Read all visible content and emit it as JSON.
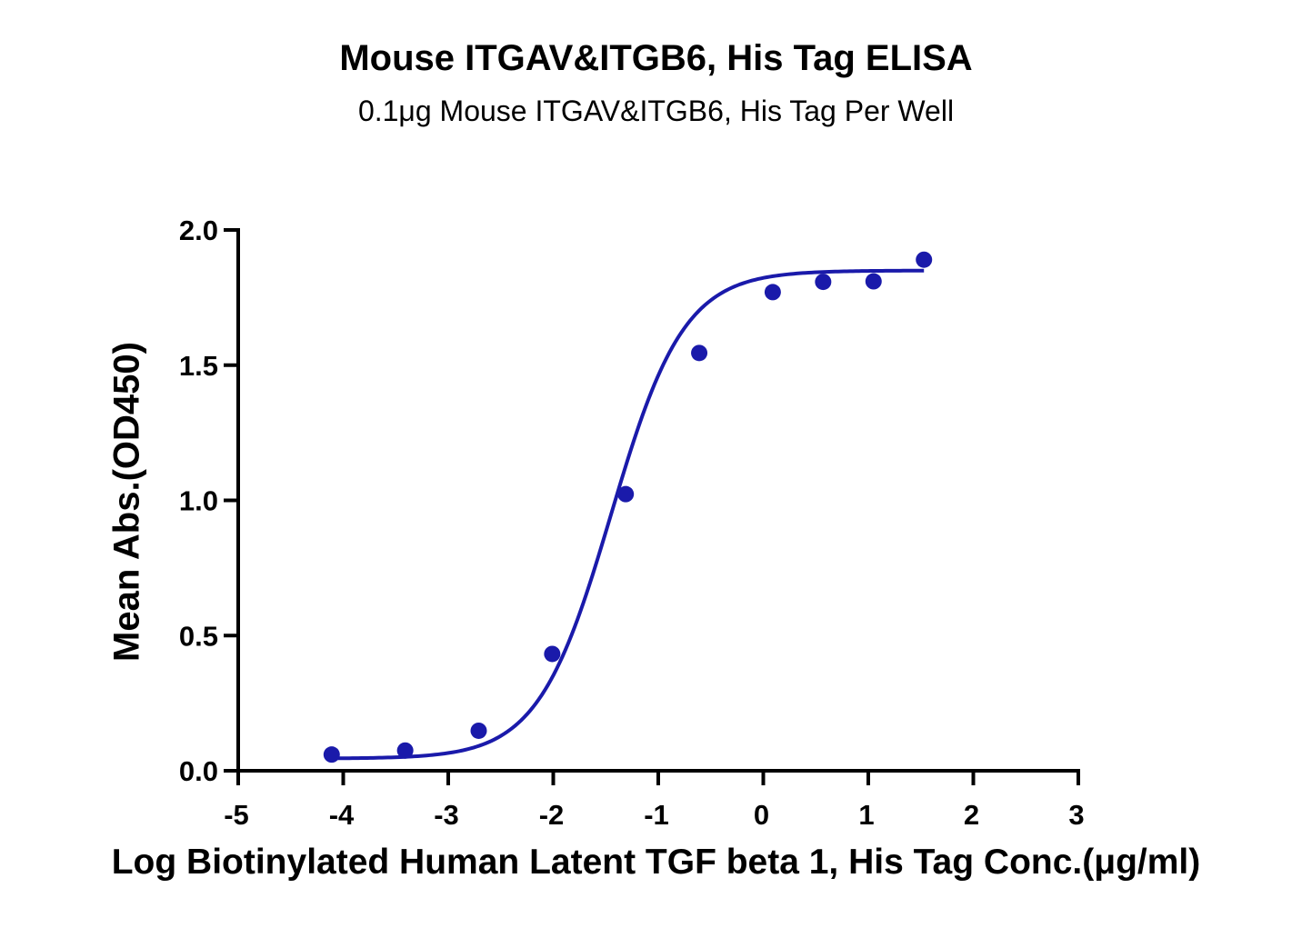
{
  "chart_data": {
    "type": "scatter",
    "title": "Mouse ITGAV&ITGB6, His Tag ELISA",
    "subtitle": "0.1μg Mouse ITGAV&ITGB6, His Tag Per Well",
    "xlabel": "Log Biotinylated Human Latent TGF beta 1, His Tag Conc.(μg/ml)",
    "ylabel": "Mean Abs.(OD450)",
    "xlim": [
      -5,
      3
    ],
    "ylim": [
      0,
      2.0
    ],
    "x_ticks": [
      "-5",
      "-4",
      "-3",
      "-2",
      "-1",
      "0",
      "1",
      "2",
      "3"
    ],
    "y_ticks": [
      "0.0",
      "0.5",
      "1.0",
      "1.5",
      "2.0"
    ],
    "grid": false,
    "color": "#1a1aaa",
    "series": [
      {
        "points": [
          {
            "x": -4.11,
            "y": 0.06
          },
          {
            "x": -3.41,
            "y": 0.075
          },
          {
            "x": -2.71,
            "y": 0.148
          },
          {
            "x": -2.01,
            "y": 0.432
          },
          {
            "x": -1.31,
            "y": 1.023
          },
          {
            "x": -0.61,
            "y": 1.545
          },
          {
            "x": 0.09,
            "y": 1.77
          },
          {
            "x": 0.57,
            "y": 1.808
          },
          {
            "x": 1.05,
            "y": 1.81
          },
          {
            "x": 1.53,
            "y": 1.89
          }
        ],
        "fit": {
          "model": "4PL",
          "bottom": 0.045,
          "top": 1.85,
          "log_ec50": -1.45,
          "hill_slope": 1.25,
          "x_range": [
            -4.11,
            1.53
          ]
        }
      }
    ]
  }
}
